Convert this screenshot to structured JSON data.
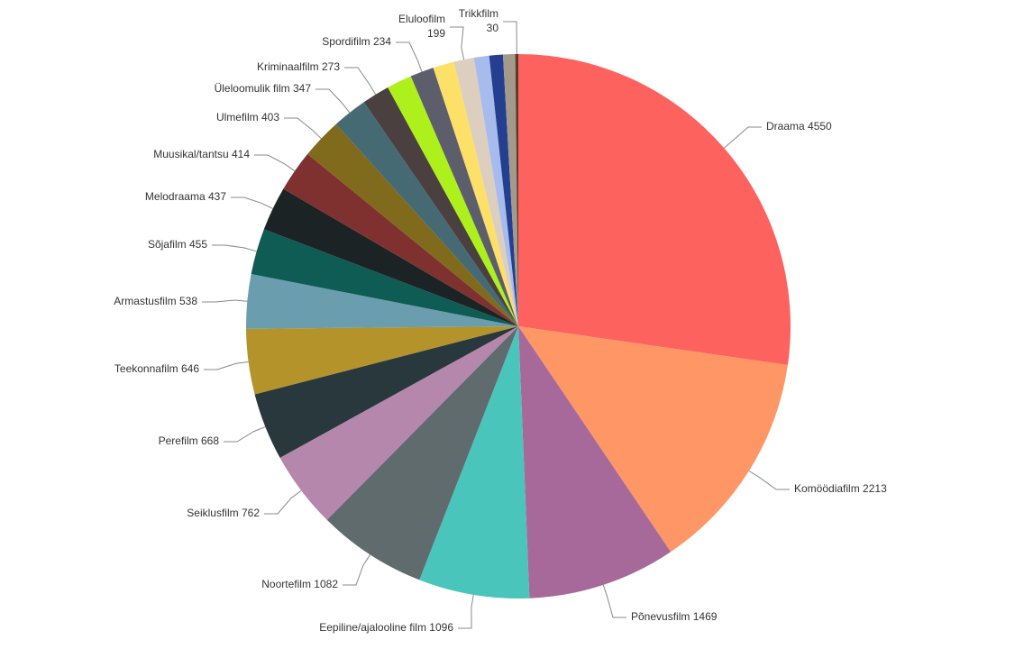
{
  "chart_data": {
    "type": "pie",
    "categories": [
      "Draama",
      "Komöödiafilm",
      "Põnevusfilm",
      "Eepiline/ajalooline film",
      "Noortefilm",
      "Seiklusfilm",
      "Perefilm",
      "Teekonnafilm",
      "Armastusfilm",
      "Sõjafilm",
      "Melodraama",
      "Muusikal/tantsu",
      "Ulmefilm",
      "Üleloomulik film",
      "Kriminaalfilm",
      null,
      "Spordifilm",
      null,
      "Eluloofilm",
      null,
      null,
      null,
      "Trikkfilm"
    ],
    "values": [
      4550,
      2213,
      1469,
      1096,
      1082,
      762,
      668,
      646,
      538,
      455,
      437,
      414,
      403,
      347,
      273,
      250,
      234,
      210,
      199,
      150,
      135,
      120,
      30
    ],
    "colors": [
      "#fd625e",
      "#fe9666",
      "#a66999",
      "#4ac5bb",
      "#5f6b6d",
      "#b687ac",
      "#28383c",
      "#b3932a",
      "#6a9eaf",
      "#0f5c55",
      "#1c2325",
      "#7f312f",
      "#7f6b1b",
      "#466a73",
      "#4b4040",
      "#aef01b",
      "#5c5f6b",
      "#fce067",
      "#dccfc0",
      "#a7bbec",
      "#243f90",
      "#a49a8c",
      "#5b3a2c"
    ]
  }
}
